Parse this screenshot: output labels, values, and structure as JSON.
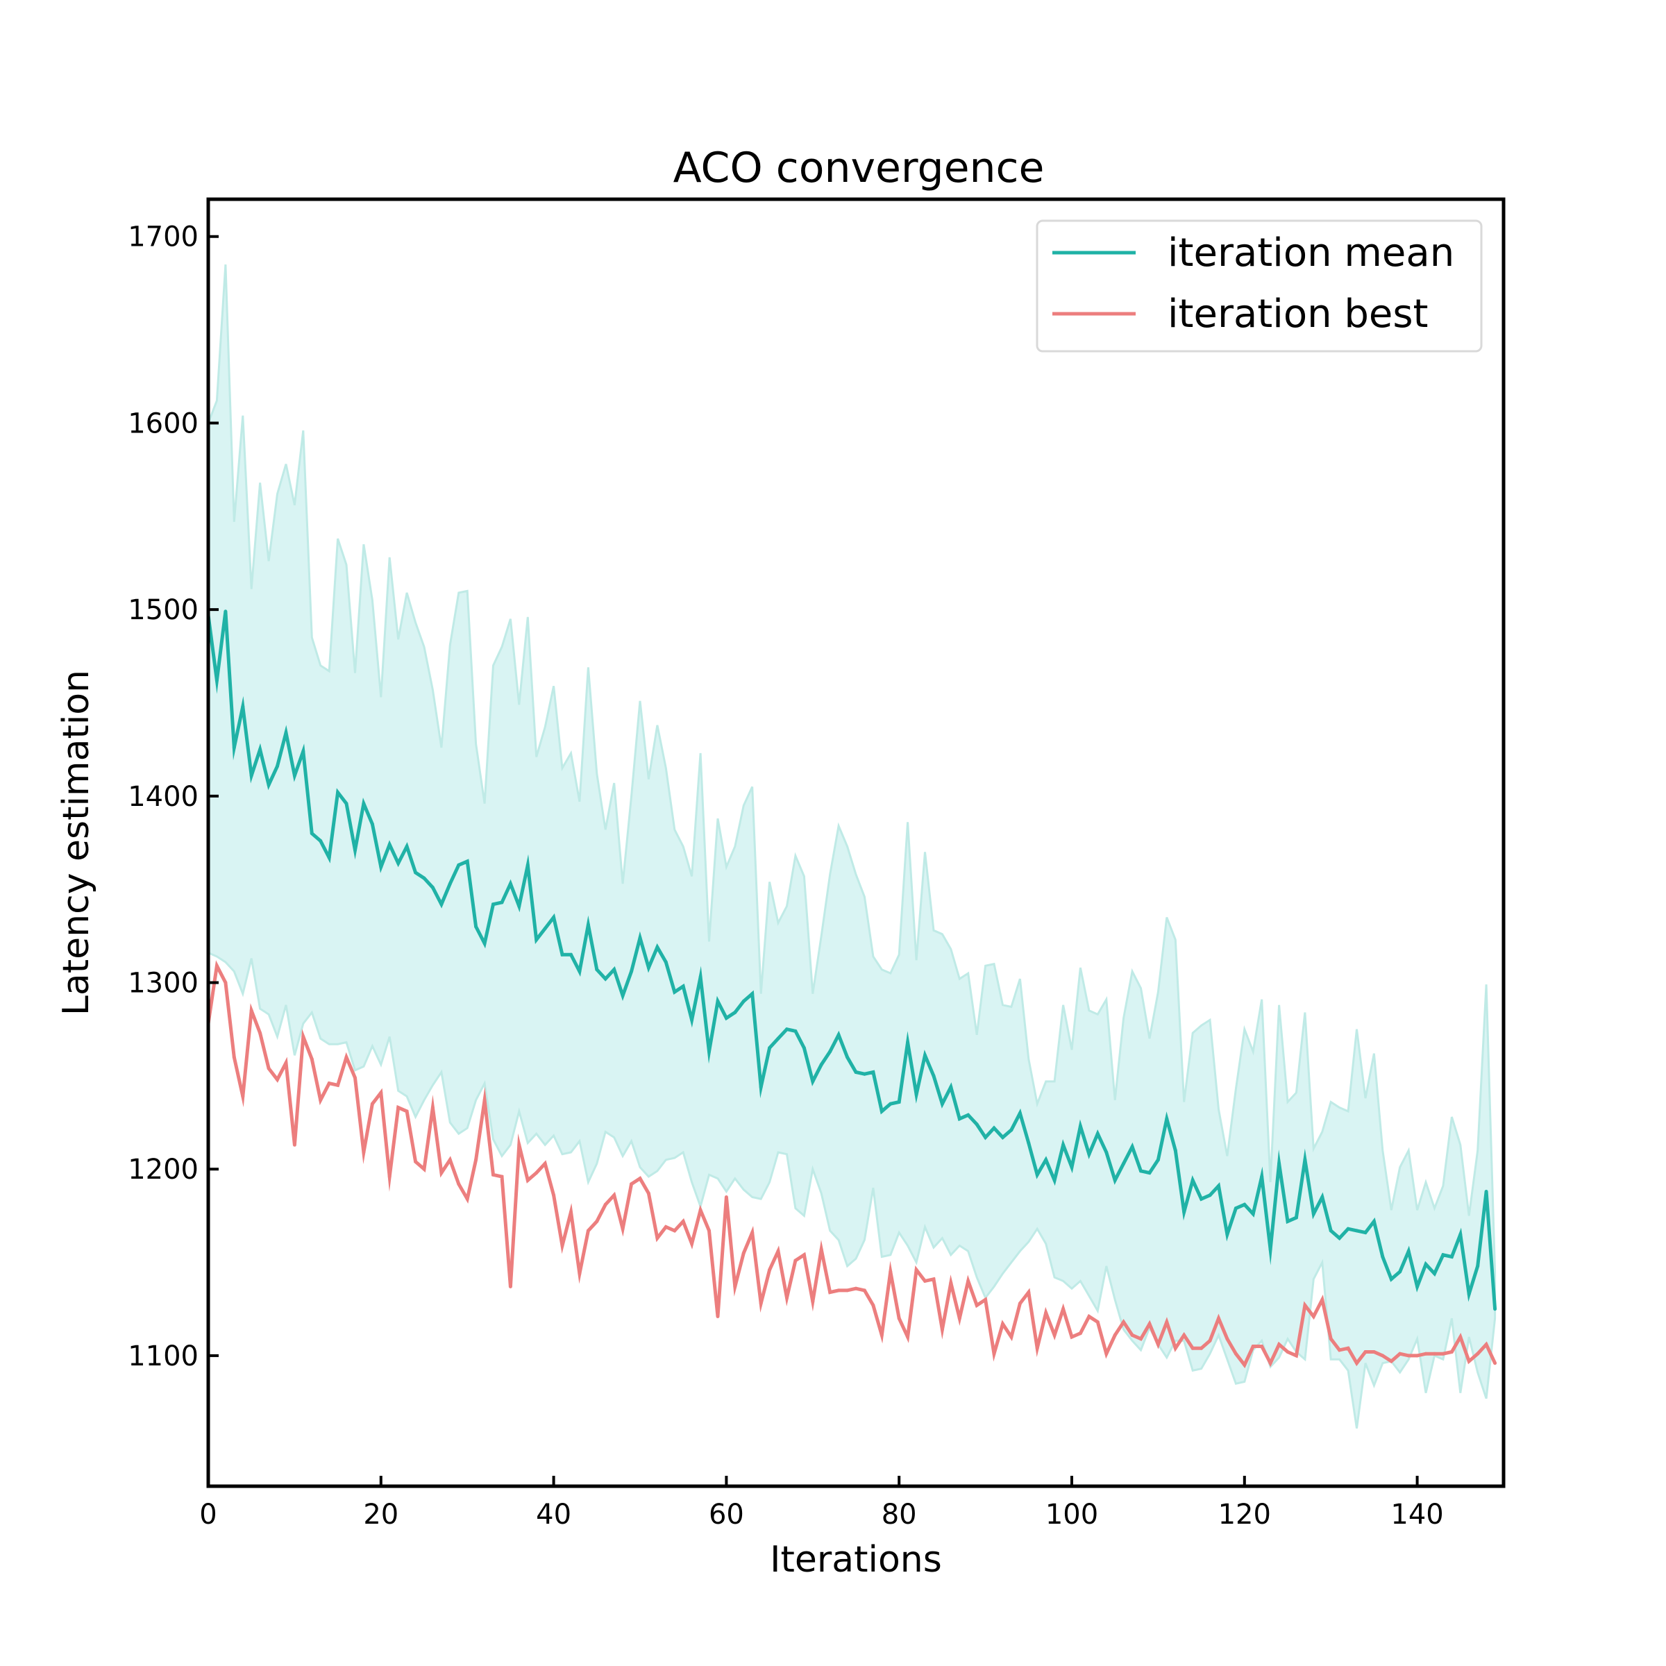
{
  "chart_data": {
    "type": "line",
    "title": "ACO convergence",
    "xlabel": "Iterations",
    "ylabel": "Latency estimation",
    "xlim": [
      0,
      150
    ],
    "ylim": [
      1030,
      1720
    ],
    "xticks": [
      0,
      20,
      40,
      60,
      80,
      100,
      120,
      140
    ],
    "yticks": [
      1100,
      1200,
      1300,
      1400,
      1500,
      1600,
      1700
    ],
    "grid": false,
    "legend_position": "top-right",
    "colors": {
      "mean": "#20b2a6",
      "best": "#ec7e7e",
      "band": "#d9f4f3",
      "band_edge": "#bfeae6"
    },
    "series": [
      {
        "name": "iteration mean",
        "key": "mean",
        "x_start": 0,
        "values": [
          1497,
          1462,
          1499,
          1426,
          1448,
          1411,
          1425,
          1406,
          1416,
          1434,
          1411,
          1424,
          1380,
          1376,
          1367,
          1402,
          1396,
          1371,
          1396,
          1385,
          1362,
          1374,
          1364,
          1373,
          1359,
          1356,
          1351,
          1342,
          1353,
          1363,
          1365,
          1330,
          1321,
          1342,
          1343,
          1353,
          1341,
          1363,
          1323,
          1329,
          1335,
          1315,
          1315,
          1306,
          1331,
          1307,
          1302,
          1307,
          1293,
          1306,
          1324,
          1308,
          1319,
          1311,
          1295,
          1298,
          1280,
          1303,
          1263,
          1290,
          1281,
          1284,
          1290,
          1294,
          1244,
          1265,
          1270,
          1275,
          1274,
          1265,
          1247,
          1256,
          1263,
          1272,
          1260,
          1252,
          1251,
          1252,
          1231,
          1235,
          1236,
          1268,
          1240,
          1261,
          1250,
          1235,
          1244,
          1227,
          1229,
          1224,
          1217,
          1222,
          1217,
          1221,
          1230,
          1214,
          1197,
          1205,
          1194,
          1213,
          1201,
          1223,
          1208,
          1219,
          1209,
          1194,
          1203,
          1212,
          1199,
          1198,
          1205,
          1227,
          1210,
          1177,
          1194,
          1184,
          1186,
          1191,
          1165,
          1179,
          1181,
          1176,
          1196,
          1157,
          1203,
          1172,
          1174,
          1205,
          1176,
          1185,
          1167,
          1163,
          1168,
          1167,
          1166,
          1172,
          1153,
          1141,
          1145,
          1156,
          1137,
          1149,
          1144,
          1154,
          1153,
          1165,
          1133,
          1148,
          1188,
          1125
        ]
      },
      {
        "name": "iteration best",
        "key": "best",
        "x_start": 0,
        "values": [
          1278,
          1309,
          1300,
          1260,
          1239,
          1285,
          1273,
          1254,
          1248,
          1257,
          1213,
          1271,
          1259,
          1237,
          1246,
          1245,
          1260,
          1249,
          1209,
          1235,
          1241,
          1196,
          1233,
          1231,
          1204,
          1200,
          1233,
          1198,
          1205,
          1192,
          1184,
          1205,
          1237,
          1197,
          1196,
          1137,
          1213,
          1194,
          1198,
          1203,
          1186,
          1159,
          1177,
          1144,
          1167,
          1172,
          1181,
          1186,
          1168,
          1192,
          1195,
          1187,
          1163,
          1169,
          1167,
          1172,
          1160,
          1178,
          1167,
          1121,
          1185,
          1137,
          1155,
          1166,
          1128,
          1146,
          1156,
          1131,
          1151,
          1154,
          1129,
          1157,
          1134,
          1135,
          1135,
          1136,
          1135,
          1127,
          1111,
          1145,
          1120,
          1110,
          1146,
          1140,
          1141,
          1114,
          1139,
          1120,
          1140,
          1127,
          1130,
          1101,
          1117,
          1110,
          1128,
          1134,
          1104,
          1123,
          1111,
          1125,
          1110,
          1112,
          1121,
          1118,
          1101,
          1111,
          1118,
          1111,
          1109,
          1117,
          1106,
          1118,
          1104,
          1111,
          1104,
          1104,
          1108,
          1120,
          1109,
          1101,
          1095,
          1105,
          1105,
          1096,
          1106,
          1102,
          1100,
          1127,
          1121,
          1130,
          1109,
          1103,
          1104,
          1096,
          1102,
          1102,
          1100,
          1097,
          1101,
          1100,
          1100,
          1101,
          1101,
          1101,
          1102,
          1110,
          1097,
          1101,
          1106,
          1096
        ]
      }
    ],
    "band": {
      "x_start": 0,
      "upper": [
        1600,
        1612,
        1685,
        1547,
        1604,
        1511,
        1568,
        1526,
        1562,
        1578,
        1556,
        1596,
        1485,
        1470,
        1467,
        1538,
        1524,
        1466,
        1535,
        1505,
        1453,
        1528,
        1484,
        1509,
        1493,
        1480,
        1457,
        1426,
        1481,
        1509,
        1510,
        1428,
        1396,
        1470,
        1480,
        1495,
        1449,
        1496,
        1421,
        1437,
        1459,
        1415,
        1423,
        1397,
        1469,
        1412,
        1382,
        1407,
        1353,
        1400,
        1451,
        1409,
        1438,
        1415,
        1382,
        1373,
        1357,
        1423,
        1322,
        1388,
        1362,
        1373,
        1395,
        1405,
        1294,
        1354,
        1332,
        1341,
        1368,
        1357,
        1294,
        1325,
        1358,
        1384,
        1373,
        1358,
        1346,
        1314,
        1307,
        1305,
        1315,
        1386,
        1312,
        1370,
        1328,
        1326,
        1318,
        1302,
        1305,
        1272,
        1309,
        1310,
        1288,
        1287,
        1302,
        1259,
        1235,
        1247,
        1247,
        1288,
        1264,
        1308,
        1285,
        1283,
        1291,
        1237,
        1281,
        1306,
        1297,
        1270,
        1295,
        1335,
        1323,
        1236,
        1273,
        1277,
        1280,
        1232,
        1207,
        1243,
        1275,
        1263,
        1291,
        1193,
        1288,
        1236,
        1241,
        1284,
        1211,
        1220,
        1236,
        1233,
        1231,
        1275,
        1238,
        1262,
        1210,
        1178,
        1201,
        1210,
        1178,
        1193,
        1179,
        1191,
        1228,
        1213,
        1175,
        1210,
        1299,
        1145
      ],
      "lower": [
        1316,
        1314,
        1311,
        1306,
        1294,
        1313,
        1286,
        1283,
        1271,
        1288,
        1261,
        1278,
        1284,
        1270,
        1267,
        1267,
        1268,
        1253,
        1255,
        1266,
        1256,
        1271,
        1242,
        1239,
        1228,
        1237,
        1245,
        1252,
        1225,
        1219,
        1222,
        1237,
        1246,
        1216,
        1207,
        1213,
        1231,
        1214,
        1219,
        1213,
        1218,
        1208,
        1209,
        1215,
        1193,
        1203,
        1220,
        1217,
        1207,
        1215,
        1201,
        1196,
        1199,
        1205,
        1206,
        1209,
        1193,
        1180,
        1197,
        1195,
        1188,
        1195,
        1189,
        1185,
        1184,
        1193,
        1209,
        1208,
        1179,
        1175,
        1200,
        1187,
        1167,
        1162,
        1148,
        1152,
        1162,
        1190,
        1153,
        1154,
        1166,
        1159,
        1150,
        1169,
        1158,
        1163,
        1154,
        1159,
        1156,
        1142,
        1131,
        1137,
        1144,
        1150,
        1156,
        1161,
        1168,
        1160,
        1142,
        1140,
        1136,
        1140,
        1132,
        1124,
        1148,
        1130,
        1114,
        1108,
        1103,
        1115,
        1106,
        1099,
        1108,
        1108,
        1092,
        1093,
        1101,
        1111,
        1098,
        1085,
        1086,
        1103,
        1108,
        1094,
        1099,
        1109,
        1102,
        1098,
        1141,
        1150,
        1098,
        1098,
        1092,
        1061,
        1096,
        1084,
        1096,
        1097,
        1091,
        1098,
        1109,
        1080,
        1100,
        1098,
        1120,
        1080,
        1110,
        1091,
        1077,
        1120
      ]
    }
  }
}
